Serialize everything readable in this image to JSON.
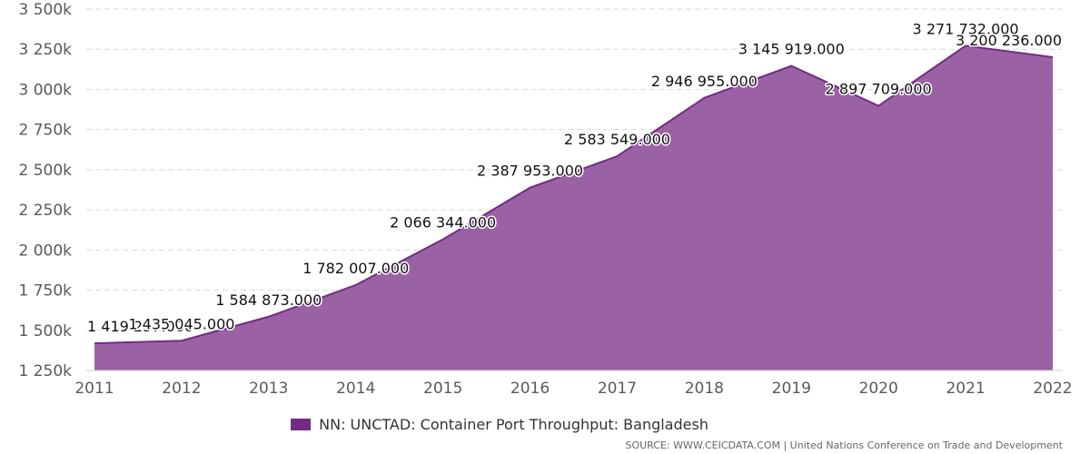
{
  "chart_data": {
    "type": "area",
    "title": "",
    "xlabel": "",
    "ylabel": "",
    "categories": [
      "2011",
      "2012",
      "2013",
      "2014",
      "2015",
      "2016",
      "2017",
      "2018",
      "2019",
      "2020",
      "2021",
      "2022"
    ],
    "series": [
      {
        "name": "NN: UNCTAD: Container Port Throughput: Bangladesh",
        "values": [
          1419237,
          1435045,
          1584873,
          1782007,
          2066344,
          2387953,
          2583549,
          2946955,
          3145919,
          2897709,
          3271732,
          3200236
        ],
        "labels": [
          "1 419 237.000",
          "1 435 045.000",
          "1 584 873.000",
          "1 782 007.000",
          "2 066 344.000",
          "2 387 953.000",
          "2 583 549.000",
          "2 946 955.000",
          "3 145 919.000",
          "2 897 709.000",
          "3 271 732.000",
          "3 200 236.000"
        ]
      }
    ],
    "ylim": [
      1250000,
      3500000
    ],
    "y_ticks": [
      1250000,
      1500000,
      1750000,
      2000000,
      2250000,
      2500000,
      2750000,
      3000000,
      3250000,
      3500000
    ],
    "y_tick_labels": [
      "1 250k",
      "1 500k",
      "1 750k",
      "2 000k",
      "2 250k",
      "2 500k",
      "2 750k",
      "3 000k",
      "3 250k",
      "3 500k"
    ],
    "grid": true,
    "legend_position": "bottom-center",
    "colors": {
      "area_fill": "#9a62a5",
      "area_line": "#732b84",
      "legend_swatch": "#732b84",
      "grid": "#d9d9d9"
    }
  },
  "source": {
    "text": "SOURCE: WWW.CEICDATA.COM | United Nations Conference on Trade and Development"
  }
}
